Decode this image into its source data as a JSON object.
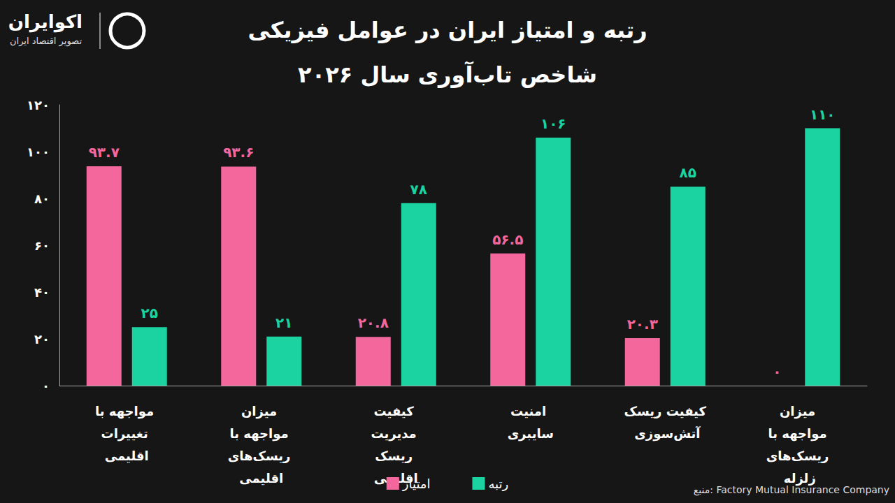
{
  "chart_data": {
    "type": "bar",
    "title": "رتبه و امتیاز ایران در عوامل فیزیکی",
    "subtitle": "شاخص تاب‌آوری سال ۲۰۲۶",
    "logo": {
      "name": "اکوایران",
      "tagline": "تصویر اقتصاد ایران"
    },
    "source": "منبع: Factory Mutual Insurance Company",
    "categories": [
      "مواجهه با تغییرات اقلیمی",
      "میزان مواجهه با ریسک‌های اقلیمی",
      "کیفیت مدیریت ریسک اقلیمی",
      "امنیت سایبری",
      "کیفیت ریسک آتش‌سوزی",
      "میزان مواجهه با ریسک‌های زلزله"
    ],
    "series": [
      {
        "name": "امتیاز",
        "color": "#f4679d",
        "values": [
          93.7,
          93.6,
          20.8,
          56.5,
          20.3,
          0
        ],
        "value_labels": [
          "۹۳.۷",
          "۹۳.۶",
          "۲۰.۸",
          "۵۶.۵",
          "۲۰.۳",
          "۰"
        ]
      },
      {
        "name": "رتبه",
        "color": "#1bd3a0",
        "values": [
          25,
          21,
          78,
          106,
          85,
          110
        ],
        "value_labels": [
          "۲۵",
          "۲۱",
          "۷۸",
          "۱۰۶",
          "۸۵",
          "۱۱۰"
        ]
      }
    ],
    "ylim": [
      0,
      120
    ],
    "yticks": [
      {
        "value": 0,
        "label": "۰"
      },
      {
        "value": 20,
        "label": "۲۰"
      },
      {
        "value": 40,
        "label": "۴۰"
      },
      {
        "value": 60,
        "label": "۶۰"
      },
      {
        "value": 80,
        "label": "۸۰"
      },
      {
        "value": 100,
        "label": "۱۰۰"
      },
      {
        "value": 120,
        "label": "۱۲۰"
      }
    ],
    "grid": false,
    "legend": "bottom",
    "data_labels": true
  }
}
